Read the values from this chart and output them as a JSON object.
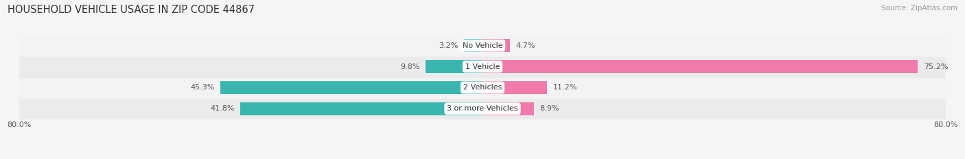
{
  "title": "HOUSEHOLD VEHICLE USAGE IN ZIP CODE 44867",
  "source": "Source: ZipAtlas.com",
  "categories": [
    "3 or more Vehicles",
    "2 Vehicles",
    "1 Vehicle",
    "No Vehicle"
  ],
  "owner_values": [
    41.8,
    45.3,
    9.8,
    3.2
  ],
  "renter_values": [
    8.9,
    11.2,
    75.2,
    4.7
  ],
  "owner_color": "#3ab5b0",
  "renter_color": "#f07aaa",
  "label_color": "#555555",
  "axis_min": -80.0,
  "axis_max": 80.0,
  "axis_tick_labels": [
    "80.0%",
    "80.0%"
  ],
  "bar_height": 0.6,
  "background_color": "#f5f5f5",
  "row_bg_colors": [
    "#ebebeb",
    "#f3f3f3",
    "#ebebeb",
    "#f3f3f3"
  ],
  "title_fontsize": 10.5,
  "source_fontsize": 7.5,
  "label_fontsize": 8,
  "category_fontsize": 8,
  "legend_fontsize": 8,
  "axis_fontsize": 8
}
